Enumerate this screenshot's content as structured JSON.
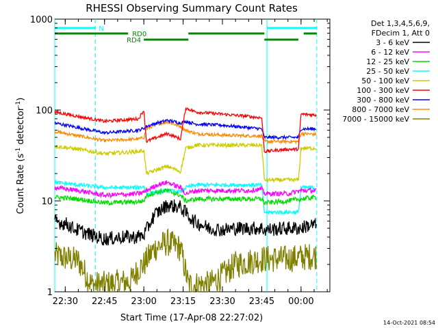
{
  "chart_data": {
    "type": "line",
    "title": "RHESSI Observing Summary Count Rates",
    "xlabel": "Start Time (17-Apr-08 22:27:02)",
    "ylabel_main": "Count Rate (s",
    "ylabel_sup1": "-1",
    "ylabel_mid": " detector",
    "ylabel_sup2": "-1",
    "ylabel_end": ")",
    "yscale": "log",
    "ylim": [
      1,
      1000
    ],
    "xlim_minutes": [
      -4,
      101
    ],
    "x_ticks": [
      {
        "label": "22:30",
        "t": 0
      },
      {
        "label": "22:45",
        "t": 15
      },
      {
        "label": "23:00",
        "t": 30
      },
      {
        "label": "23:15",
        "t": 45
      },
      {
        "label": "23:30",
        "t": 60
      },
      {
        "label": "23:45",
        "t": 75
      },
      {
        "label": "00:00",
        "t": 90
      }
    ],
    "y_ticks": [
      {
        "label": "1",
        "v": 1
      },
      {
        "label": "10",
        "v": 10
      },
      {
        "label": "100",
        "v": 100
      },
      {
        "label": "1000",
        "v": 1000
      }
    ],
    "legend_header": [
      "Det 1,3,4,5,6,9,",
      "FDecim 1, Att 0"
    ],
    "series": [
      {
        "name": "3 - 6 keV",
        "color": "#000000",
        "pts": [
          [
            -4,
            6
          ],
          [
            1,
            5.5
          ],
          [
            3,
            5
          ],
          [
            10,
            4.2
          ],
          [
            15,
            3.8
          ],
          [
            22,
            4
          ],
          [
            27,
            4
          ],
          [
            30,
            4.2
          ],
          [
            34,
            7
          ],
          [
            39,
            9
          ],
          [
            44,
            8.5
          ],
          [
            49,
            6
          ],
          [
            55,
            5
          ],
          [
            60,
            4.8
          ],
          [
            65,
            5
          ],
          [
            70,
            5
          ],
          [
            75,
            5
          ],
          [
            76,
            4.8
          ],
          [
            85,
            5
          ],
          [
            90,
            5
          ],
          [
            92,
            5.3
          ],
          [
            96,
            5.5
          ]
        ],
        "noise": 0.18
      },
      {
        "name": "6 - 12 keV",
        "color": "#ff00ff",
        "pts": [
          [
            -4,
            14
          ],
          [
            5,
            13
          ],
          [
            15,
            11.5
          ],
          [
            28,
            12
          ],
          [
            30,
            12.5
          ],
          [
            31,
            13
          ],
          [
            35,
            15
          ],
          [
            39,
            16
          ],
          [
            44,
            14
          ],
          [
            46,
            12
          ],
          [
            50,
            13
          ],
          [
            60,
            13
          ],
          [
            70,
            13
          ],
          [
            75,
            13.5
          ],
          [
            76,
            12
          ],
          [
            85,
            12
          ],
          [
            90,
            13
          ],
          [
            96,
            13
          ]
        ],
        "noise": 0.06
      },
      {
        "name": "12 - 25 keV",
        "color": "#00dd00",
        "pts": [
          [
            -4,
            11
          ],
          [
            5,
            10.5
          ],
          [
            15,
            9.5
          ],
          [
            28,
            9.8
          ],
          [
            30,
            10
          ],
          [
            31,
            11.5
          ],
          [
            35,
            12.5
          ],
          [
            39,
            13
          ],
          [
            44,
            11.5
          ],
          [
            46,
            10
          ],
          [
            50,
            10.5
          ],
          [
            60,
            10.5
          ],
          [
            70,
            10.5
          ],
          [
            75,
            10.5
          ],
          [
            76,
            9.5
          ],
          [
            85,
            10
          ],
          [
            90,
            10.5
          ],
          [
            96,
            11
          ]
        ],
        "noise": 0.06
      },
      {
        "name": "25 - 50 keV",
        "color": "#00ffff",
        "pts": [
          [
            -4,
            16
          ],
          [
            5,
            15
          ],
          [
            15,
            14
          ],
          [
            28,
            14
          ],
          [
            30,
            14.5
          ],
          [
            31,
            12
          ],
          [
            35,
            12.5
          ],
          [
            39,
            13
          ],
          [
            44,
            12.5
          ],
          [
            46,
            14
          ],
          [
            50,
            15
          ],
          [
            60,
            15
          ],
          [
            70,
            15
          ],
          [
            75,
            15
          ],
          [
            76,
            7.5
          ],
          [
            85,
            7.5
          ],
          [
            89,
            7.5
          ],
          [
            90,
            14
          ],
          [
            96,
            14
          ]
        ],
        "noise": 0.05
      },
      {
        "name": "50 - 100 keV",
        "color": "#cccc00",
        "pts": [
          [
            -4,
            40
          ],
          [
            5,
            37
          ],
          [
            15,
            33
          ],
          [
            28,
            35
          ],
          [
            30,
            36
          ],
          [
            31,
            20
          ],
          [
            35,
            22
          ],
          [
            39,
            24
          ],
          [
            44,
            21
          ],
          [
            46,
            38
          ],
          [
            50,
            41
          ],
          [
            60,
            41
          ],
          [
            70,
            41
          ],
          [
            75,
            41
          ],
          [
            76,
            17
          ],
          [
            85,
            17
          ],
          [
            89,
            17
          ],
          [
            90,
            38
          ],
          [
            96,
            38
          ]
        ],
        "noise": 0.05
      },
      {
        "name": "100 - 300 keV",
        "color": "#ff0000",
        "pts": [
          [
            -4,
            95
          ],
          [
            5,
            85
          ],
          [
            15,
            75
          ],
          [
            28,
            80
          ],
          [
            30,
            100
          ],
          [
            31,
            45
          ],
          [
            35,
            50
          ],
          [
            39,
            55
          ],
          [
            44,
            48
          ],
          [
            46,
            105
          ],
          [
            50,
            95
          ],
          [
            60,
            90
          ],
          [
            70,
            85
          ],
          [
            75,
            82
          ],
          [
            76,
            35
          ],
          [
            85,
            37
          ],
          [
            89,
            37
          ],
          [
            90,
            90
          ],
          [
            96,
            88
          ]
        ],
        "noise": 0.04
      },
      {
        "name": "300 - 800 keV",
        "color": "#0000ff",
        "pts": [
          [
            -4,
            72
          ],
          [
            5,
            64
          ],
          [
            15,
            56
          ],
          [
            28,
            60
          ],
          [
            30,
            63
          ],
          [
            31,
            66
          ],
          [
            35,
            72
          ],
          [
            39,
            77
          ],
          [
            44,
            72
          ],
          [
            46,
            75
          ],
          [
            50,
            70
          ],
          [
            60,
            68
          ],
          [
            70,
            64
          ],
          [
            75,
            62
          ],
          [
            76,
            50
          ],
          [
            85,
            50
          ],
          [
            89,
            50
          ],
          [
            90,
            62
          ],
          [
            96,
            62
          ]
        ],
        "noise": 0.04
      },
      {
        "name": "800 - 7000 keV",
        "color": "#ff8800",
        "pts": [
          [
            -4,
            58
          ],
          [
            5,
            52
          ],
          [
            15,
            46
          ],
          [
            28,
            48
          ],
          [
            30,
            50
          ],
          [
            31,
            62
          ],
          [
            35,
            70
          ],
          [
            39,
            74
          ],
          [
            44,
            66
          ],
          [
            46,
            60
          ],
          [
            50,
            55
          ],
          [
            60,
            53
          ],
          [
            70,
            52
          ],
          [
            75,
            52
          ],
          [
            76,
            45
          ],
          [
            85,
            45
          ],
          [
            89,
            45
          ],
          [
            90,
            55
          ],
          [
            96,
            54
          ]
        ],
        "noise": 0.04
      },
      {
        "name": "7000 - 15000 keV",
        "color": "#808000",
        "pts": [
          [
            -4,
            2.5
          ],
          [
            5,
            2.2
          ],
          [
            10,
            1.2
          ],
          [
            15,
            1.2
          ],
          [
            25,
            1.3
          ],
          [
            28,
            1.8
          ],
          [
            30,
            2
          ],
          [
            34,
            3
          ],
          [
            39,
            3.5
          ],
          [
            44,
            3
          ],
          [
            47,
            1.2
          ],
          [
            55,
            1.2
          ],
          [
            60,
            1.5
          ],
          [
            65,
            2
          ],
          [
            75,
            2.3
          ],
          [
            85,
            2.3
          ],
          [
            96,
            2.5
          ]
        ],
        "noise": 0.35
      }
    ],
    "vlines": [
      {
        "t": -4,
        "color": "#00ffff",
        "style": "solid"
      },
      {
        "t": 11.5,
        "color": "#00ffff",
        "style": "dashed"
      },
      {
        "t": 77,
        "color": "#00ffff",
        "style": "solid"
      },
      {
        "t": 96,
        "color": "#00ffff",
        "style": "dashed"
      }
    ],
    "flag_bars": [
      {
        "label": "N",
        "color": "#00ffff",
        "row": 0,
        "segments": [
          [
            -4,
            11.5
          ],
          [
            77,
            96
          ]
        ]
      },
      {
        "label": "RD0",
        "color": "#008800",
        "row": 1,
        "segments": [
          [
            -4,
            24
          ],
          [
            47,
            76
          ],
          [
            91,
            96
          ]
        ]
      },
      {
        "label": "RD4",
        "color": "#008800",
        "row": 2,
        "segments": [
          [
            30,
            47
          ],
          [
            76,
            89
          ]
        ]
      }
    ],
    "footer_date": "14-Oct-2021 08:54"
  }
}
